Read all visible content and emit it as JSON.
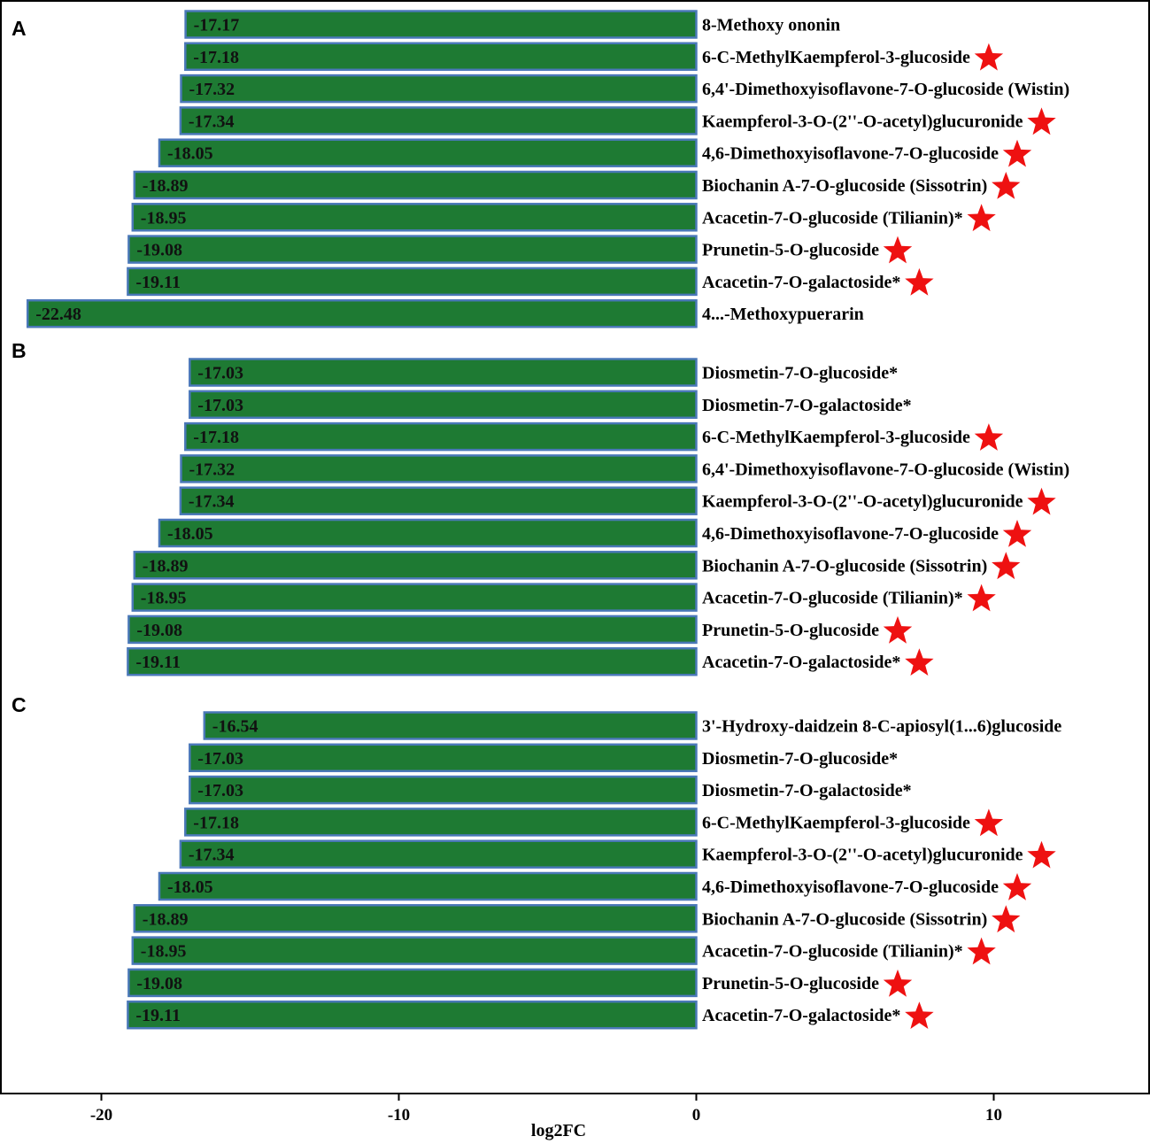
{
  "chart_data": {
    "type": "bar",
    "orientation": "horizontal",
    "xlabel": "log2FC",
    "xlim": [
      -22.8,
      14.5
    ],
    "x_ticks": [
      -20,
      -10,
      0,
      10
    ],
    "x_tick_labels": [
      "-20",
      "-10",
      "0",
      "10"
    ],
    "bar_color": "#1e7a33",
    "bar_edge_color": "#4a78b8",
    "marker_color": "#ee1111",
    "grid": false,
    "panels": [
      {
        "label": "A",
        "items": [
          {
            "name": "8-Methoxy ononin",
            "value": -17.17,
            "value_label": "-17.17",
            "star": false
          },
          {
            "name": "6-C-MethylKaempferol-3-glucoside",
            "value": -17.18,
            "value_label": "-17.18",
            "star": true
          },
          {
            "name": "6,4'-Dimethoxyisoflavone-7-O-glucoside (Wistin)",
            "value": -17.32,
            "value_label": "-17.32",
            "star": false
          },
          {
            "name": "Kaempferol-3-O-(2''-O-acetyl)glucuronide",
            "value": -17.34,
            "value_label": "-17.34",
            "star": true
          },
          {
            "name": "4,6-Dimethoxyisoflavone-7-O-glucoside",
            "value": -18.05,
            "value_label": "-18.05",
            "star": true
          },
          {
            "name": "Biochanin A-7-O-glucoside (Sissotrin)",
            "value": -18.89,
            "value_label": "-18.89",
            "star": true
          },
          {
            "name": "Acacetin-7-O-glucoside (Tilianin)*",
            "value": -18.95,
            "value_label": "-18.95",
            "star": true
          },
          {
            "name": "Prunetin-5-O-glucoside",
            "value": -19.08,
            "value_label": "-19.08",
            "star": true
          },
          {
            "name": "Acacetin-7-O-galactoside*",
            "value": -19.11,
            "value_label": "-19.11",
            "star": true
          },
          {
            "name": "4...-Methoxypuerarin",
            "value": -22.48,
            "value_label": "-22.48",
            "star": false
          }
        ]
      },
      {
        "label": "B",
        "items": [
          {
            "name": "Diosmetin-7-O-glucoside*",
            "value": -17.03,
            "value_label": "-17.03",
            "star": false
          },
          {
            "name": "Diosmetin-7-O-galactoside*",
            "value": -17.03,
            "value_label": "-17.03",
            "star": false
          },
          {
            "name": "6-C-MethylKaempferol-3-glucoside",
            "value": -17.18,
            "value_label": "-17.18",
            "star": true
          },
          {
            "name": "6,4'-Dimethoxyisoflavone-7-O-glucoside (Wistin)",
            "value": -17.32,
            "value_label": "-17.32",
            "star": false
          },
          {
            "name": "Kaempferol-3-O-(2''-O-acetyl)glucuronide",
            "value": -17.34,
            "value_label": "-17.34",
            "star": true
          },
          {
            "name": "4,6-Dimethoxyisoflavone-7-O-glucoside",
            "value": -18.05,
            "value_label": "-18.05",
            "star": true
          },
          {
            "name": "Biochanin A-7-O-glucoside (Sissotrin)",
            "value": -18.89,
            "value_label": "-18.89",
            "star": true
          },
          {
            "name": "Acacetin-7-O-glucoside (Tilianin)*",
            "value": -18.95,
            "value_label": "-18.95",
            "star": true
          },
          {
            "name": "Prunetin-5-O-glucoside",
            "value": -19.08,
            "value_label": "-19.08",
            "star": true
          },
          {
            "name": "Acacetin-7-O-galactoside*",
            "value": -19.11,
            "value_label": "-19.11",
            "star": true
          }
        ]
      },
      {
        "label": "C",
        "items": [
          {
            "name": "3'-Hydroxy-daidzein 8-C-apiosyl(1...6)glucoside",
            "value": -16.54,
            "value_label": "-16.54",
            "star": false
          },
          {
            "name": "Diosmetin-7-O-glucoside*",
            "value": -17.03,
            "value_label": "-17.03",
            "star": false
          },
          {
            "name": "Diosmetin-7-O-galactoside*",
            "value": -17.03,
            "value_label": "-17.03",
            "star": false
          },
          {
            "name": "6-C-MethylKaempferol-3-glucoside",
            "value": -17.18,
            "value_label": "-17.18",
            "star": true
          },
          {
            "name": "Kaempferol-3-O-(2''-O-acetyl)glucuronide",
            "value": -17.34,
            "value_label": "-17.34",
            "star": true
          },
          {
            "name": "4,6-Dimethoxyisoflavone-7-O-glucoside",
            "value": -18.05,
            "value_label": "-18.05",
            "star": true
          },
          {
            "name": "Biochanin A-7-O-glucoside (Sissotrin)",
            "value": -18.89,
            "value_label": "-18.89",
            "star": true
          },
          {
            "name": "Acacetin-7-O-glucoside (Tilianin)*",
            "value": -18.95,
            "value_label": "-18.95",
            "star": true
          },
          {
            "name": "Prunetin-5-O-glucoside",
            "value": -19.08,
            "value_label": "-19.08",
            "star": true
          },
          {
            "name": "Acacetin-7-O-galactoside*",
            "value": -19.11,
            "value_label": "-19.11",
            "star": true
          }
        ]
      }
    ]
  }
}
